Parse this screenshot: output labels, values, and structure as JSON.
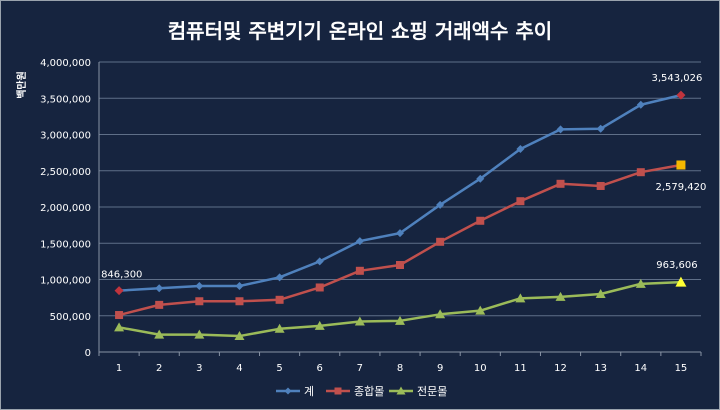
{
  "chart_data": {
    "type": "line",
    "title": "컴퓨터및 주변기기 온라인 쇼핑 거래액수 추이",
    "ylabel": "백만원",
    "xlabel": "",
    "categories": [
      "1",
      "2",
      "3",
      "4",
      "5",
      "6",
      "7",
      "8",
      "9",
      "10",
      "11",
      "12",
      "13",
      "14",
      "15"
    ],
    "ylim": [
      0,
      4000000
    ],
    "yticks": [
      "0",
      "500,000",
      "1,000,000",
      "1,500,000",
      "2,000,000",
      "2,500,000",
      "3,000,000",
      "3,500,000",
      "4,000,000"
    ],
    "grid": true,
    "legend": "bottom",
    "series": [
      {
        "name": "계",
        "color": "#4f81bd",
        "marker": "diamond",
        "values": [
          846300,
          880000,
          910000,
          910000,
          1030000,
          1250000,
          1530000,
          1640000,
          2030000,
          2390000,
          2800000,
          3070000,
          3080000,
          3410000,
          3543026
        ]
      },
      {
        "name": "종합몰",
        "color": "#c0504d",
        "marker": "square",
        "values": [
          510000,
          650000,
          700000,
          700000,
          720000,
          890000,
          1120000,
          1200000,
          1520000,
          1810000,
          2080000,
          2320000,
          2290000,
          2480000,
          2579420
        ]
      },
      {
        "name": "전문몰",
        "color": "#9bbb59",
        "marker": "triangle",
        "values": [
          340000,
          240000,
          240000,
          220000,
          320000,
          360000,
          420000,
          430000,
          520000,
          570000,
          740000,
          760000,
          800000,
          940000,
          963606
        ]
      }
    ],
    "annotations": [
      {
        "text": "846,300",
        "series": 0,
        "index": 0,
        "color": "#c0343d"
      },
      {
        "text": "3,543,026",
        "series": 0,
        "index": 14,
        "color": "#c0343d"
      },
      {
        "text": "2,579,420",
        "series": 1,
        "index": 14,
        "color": "#f5b800"
      },
      {
        "text": "963,606",
        "series": 2,
        "index": 14,
        "color": "#ffff33"
      }
    ]
  }
}
